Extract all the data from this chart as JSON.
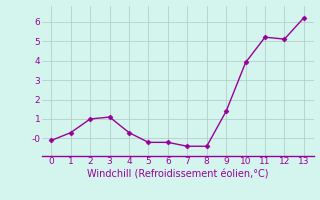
{
  "x": [
    0,
    1,
    2,
    3,
    4,
    5,
    6,
    7,
    8,
    9,
    10,
    11,
    12,
    13
  ],
  "y": [
    -0.1,
    0.3,
    1.0,
    1.1,
    0.3,
    -0.2,
    -0.2,
    -0.4,
    -0.4,
    1.4,
    3.9,
    5.2,
    5.1,
    6.2
  ],
  "line_color": "#990099",
  "marker": "D",
  "marker_size": 2.5,
  "linewidth": 1.0,
  "xlabel": "Windchill (Refroidissement éolien,°C)",
  "xlabel_color": "#990099",
  "xlabel_fontsize": 7,
  "bg_color": "#d4f5ee",
  "grid_color": "#b0c8c4",
  "tick_color": "#990099",
  "spine_color": "#990099",
  "xlim": [
    -0.5,
    13.5
  ],
  "ylim": [
    -0.9,
    6.8
  ],
  "yticks": [
    0,
    1,
    2,
    3,
    4,
    5,
    6
  ],
  "ytick_labels": [
    "-0",
    "1",
    "2",
    "3",
    "4",
    "5",
    "6"
  ],
  "xticks": [
    0,
    1,
    2,
    3,
    4,
    5,
    6,
    7,
    8,
    9,
    10,
    11,
    12,
    13
  ]
}
